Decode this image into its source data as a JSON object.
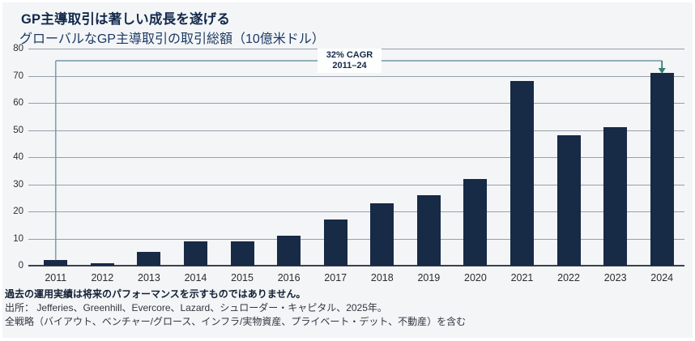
{
  "header": {
    "title": "GP主導取引は著しい成長を遂げる",
    "subtitle": "グローバルなGP主導取引の取引総額（10億米ドル）"
  },
  "chart_data": {
    "type": "bar",
    "title": "GP主導取引は著しい成長を遂げる",
    "subtitle": "グローバルなGP主導取引の取引総額（10億米ドル）",
    "categories": [
      "2011",
      "2012",
      "2013",
      "2014",
      "2015",
      "2016",
      "2017",
      "2018",
      "2019",
      "2020",
      "2021",
      "2022",
      "2023",
      "2024"
    ],
    "values": [
      2,
      1,
      5,
      9,
      9,
      11,
      17,
      23,
      26,
      32,
      68,
      48,
      51,
      71
    ],
    "xlabel": "",
    "ylabel": "",
    "ylim": [
      0,
      80
    ],
    "ytick_step": 10,
    "grid": true,
    "legend": "none",
    "bar_color": "#172a46",
    "annotation": {
      "line1": "32% CAGR",
      "line2": "2011–24",
      "from_category": "2011",
      "to_category": "2024",
      "bracket_color": "#6f99a9",
      "arrow_color": "#2f7e70"
    }
  },
  "footer": {
    "disclaimer": "過去の運用実績は将来のパフォーマンスを示すものではありません。",
    "source": "出所： Jefferies、Greenhill、Evercore、Lazard、シュローダー・キャピタル、2025年。",
    "note": "全戦略（バイアウト、ベンチャー/グロース、インフラ/実物資産、プライベート・デット、不動産）を含む"
  },
  "colors": {
    "card_background": "#f3f5f7",
    "bar": "#172a46",
    "gridline": "#99a0a8",
    "axis_line": "#3a414e",
    "title_text": "#13294b",
    "annotation_bracket": "#6f99a9",
    "annotation_arrow": "#2f7e70"
  }
}
